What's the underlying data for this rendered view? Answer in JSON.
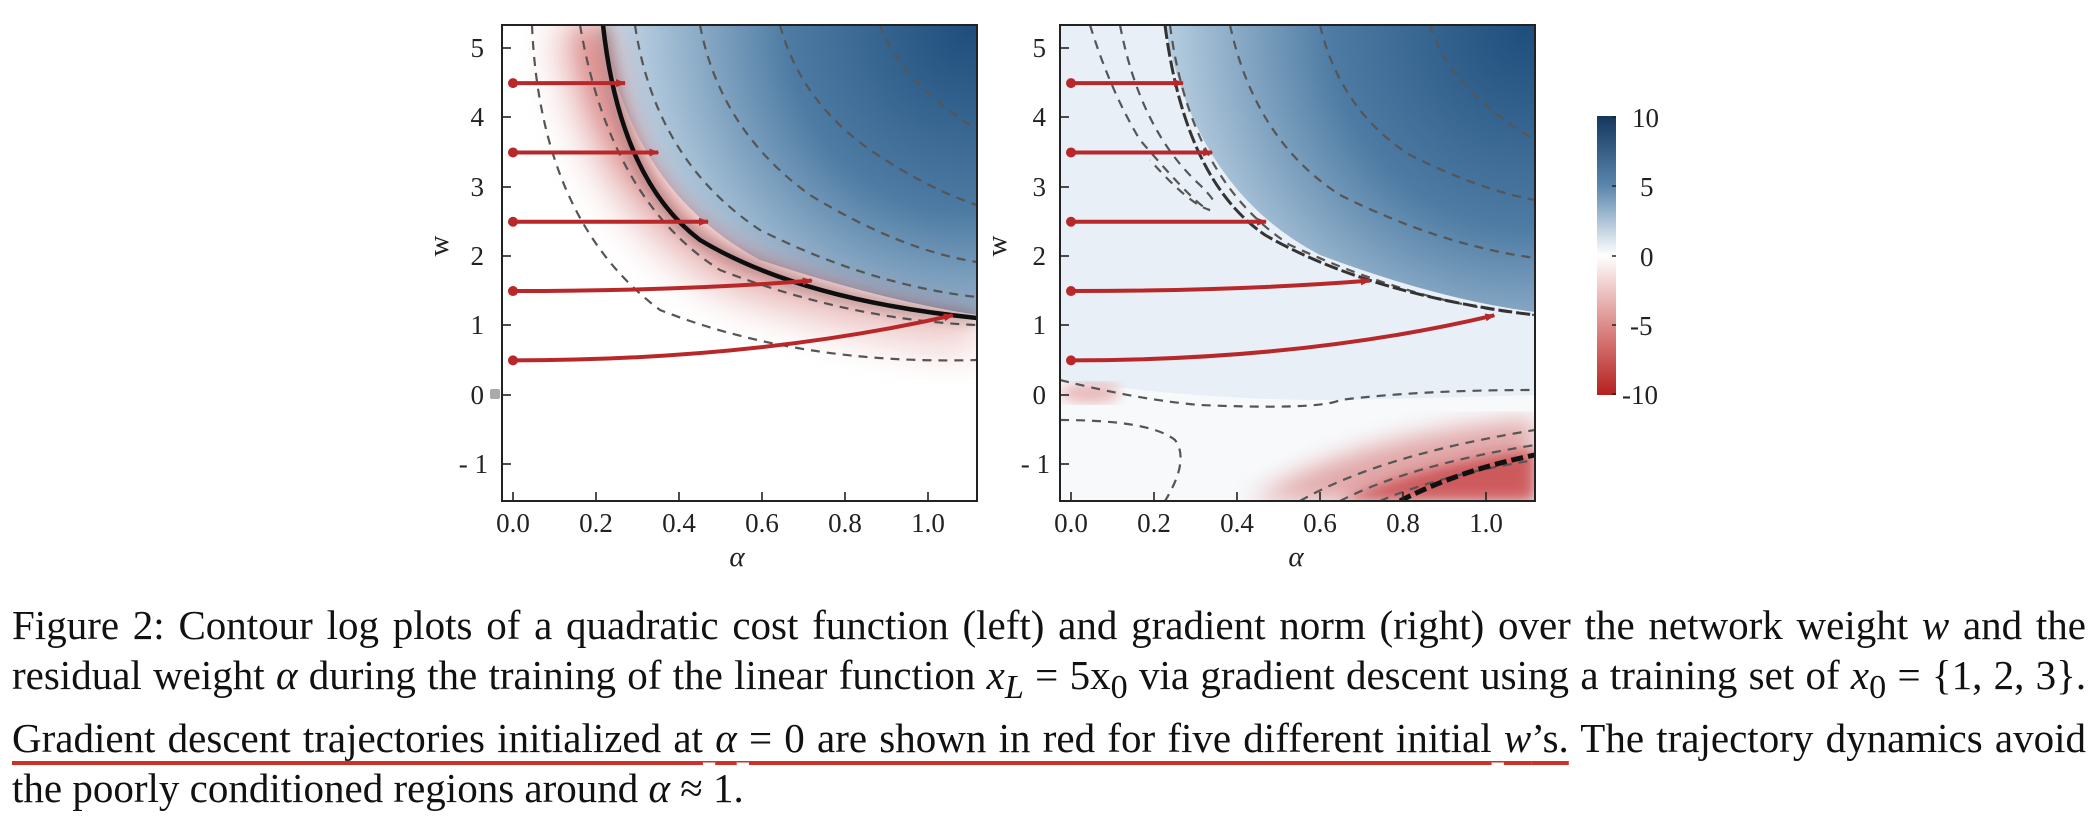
{
  "figure": {
    "panels": [
      {
        "name": "left",
        "x_label": "α",
        "y_label": "w",
        "x_ticks": [
          "0.0",
          "0.2",
          "0.4",
          "0.6",
          "0.8",
          "1.0"
        ],
        "y_ticks": [
          "5",
          "4",
          "3",
          "2",
          "1",
          "0",
          "- 1"
        ],
        "trajectories": [
          {
            "start": [
              0,
              4.5
            ],
            "end": [
              0.27,
              4.5
            ]
          },
          {
            "start": [
              0,
              3.5
            ],
            "end": [
              0.35,
              3.5
            ]
          },
          {
            "start": [
              0,
              2.5
            ],
            "end": [
              0.47,
              2.5
            ]
          },
          {
            "start": [
              0,
              1.5
            ],
            "end": [
              0.72,
              1.65
            ]
          },
          {
            "start": [
              0,
              0.5
            ],
            "end": [
              1.06,
              1.15
            ]
          }
        ]
      },
      {
        "name": "right",
        "x_label": "α",
        "y_label": "w",
        "x_ticks": [
          "0.0",
          "0.2",
          "0.4",
          "0.6",
          "0.8",
          "1.0"
        ],
        "y_ticks": [
          "5",
          "4",
          "3",
          "2",
          "1",
          "0",
          "- 1"
        ],
        "trajectories": [
          {
            "start": [
              0,
              4.5
            ],
            "end": [
              0.27,
              4.5
            ]
          },
          {
            "start": [
              0,
              3.5
            ],
            "end": [
              0.34,
              3.5
            ]
          },
          {
            "start": [
              0,
              2.5
            ],
            "end": [
              0.47,
              2.5
            ]
          },
          {
            "start": [
              0,
              1.5
            ],
            "end": [
              0.72,
              1.65
            ]
          },
          {
            "start": [
              0,
              0.5
            ],
            "end": [
              1.02,
              1.15
            ]
          }
        ]
      }
    ],
    "colorbar": {
      "ticks": [
        "10",
        "5",
        "0",
        "-5",
        "-10"
      ],
      "colors": {
        "high": "#1e4d7b",
        "mid": "#ffffff",
        "low": "#c0282a"
      }
    },
    "trajectory_color": "#b8282a"
  },
  "caption": {
    "label": "Figure 2:",
    "part1": "Contour log plots of a quadratic cost function (left) and gradient norm (right) over the network weight",
    "w1": "w",
    "part2": "and the residual weight",
    "alpha1": "α",
    "part3": "during the training of the linear function",
    "math1": "x",
    "math1_sub": "L",
    "math1_rest": "= 5x",
    "math1_sub2": "0",
    "part4": "via gradient descent using a training set of",
    "math2": "x",
    "math2_sub": "0",
    "math2_rest": "= {1, 2, 3}.",
    "highlight1": "Gradient descent trajectories initialized at",
    "alpha2": "α",
    "highlight2": "= 0 are shown in red for five different initial",
    "w2": "w",
    "highlight3": "’s.",
    "part5": "The trajectory dynamics avoid the poorly conditioned regions around",
    "alpha3": "α",
    "part6": "≈ 1."
  }
}
